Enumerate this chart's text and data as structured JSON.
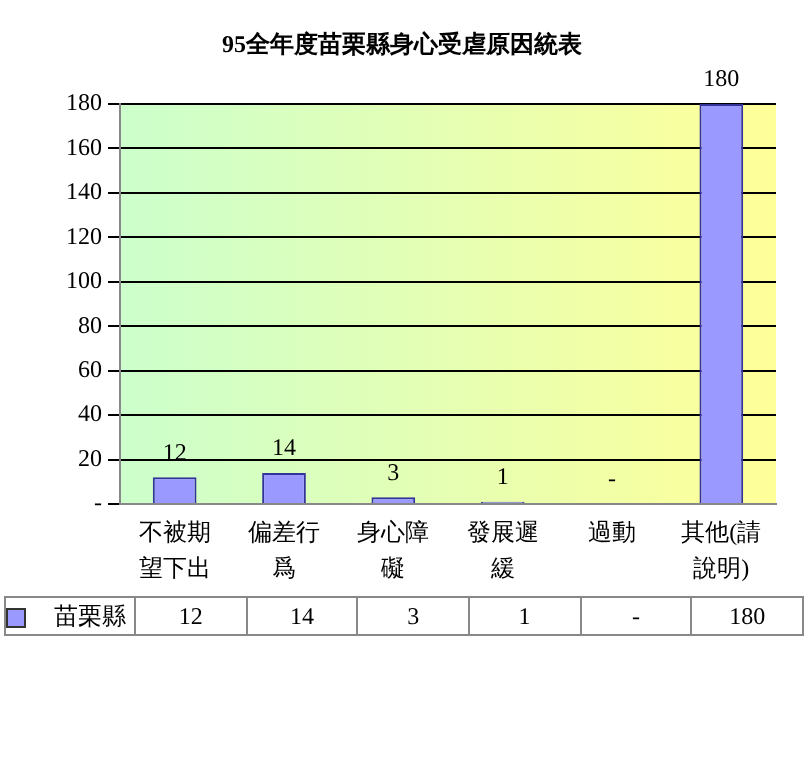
{
  "chart_data": {
    "type": "bar",
    "title": "95全年度苗栗縣身心受虐原因統表",
    "categories": [
      "不被期望下出",
      "偏差行爲",
      "身心障礙",
      "發展遲緩",
      "過動",
      "其他(請說明)"
    ],
    "series": [
      {
        "name": "苗栗縣",
        "color": "#9999ff",
        "values": [
          12,
          14,
          3,
          1,
          0,
          180
        ],
        "value_labels": [
          "12",
          "14",
          "3",
          "1",
          "-",
          "180"
        ]
      }
    ],
    "ylim": [
      0,
      180
    ],
    "yticks": [
      {
        "value": 0,
        "label": "-"
      },
      20,
      40,
      60,
      80,
      100,
      120,
      140,
      160,
      180
    ],
    "grid": "y",
    "legend": "bottom"
  }
}
